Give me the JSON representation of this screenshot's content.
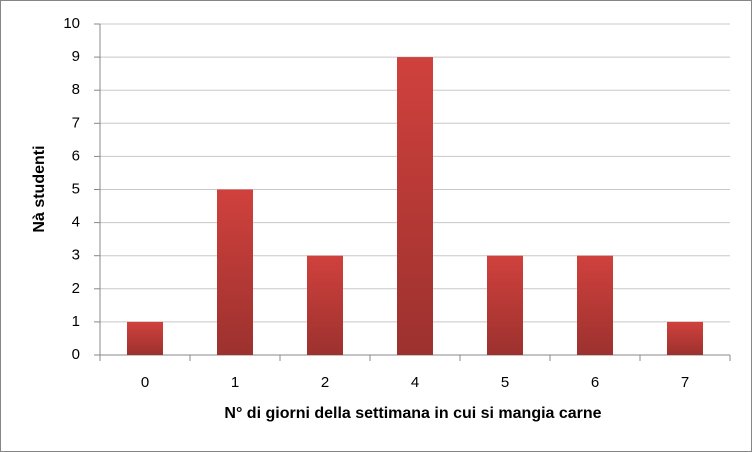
{
  "chart_data": {
    "type": "bar",
    "x_label": "N° di giorni della settimana in cui si mangia carne",
    "y_label": "Nà studenti",
    "categories": [
      "0",
      "1",
      "2",
      "4",
      "5",
      "6",
      "7"
    ],
    "values": [
      1,
      5,
      3,
      9,
      3,
      3,
      1
    ],
    "color": "#d0413d",
    "ylim": [
      0,
      10
    ],
    "yticks": [
      0,
      1,
      2,
      3,
      4,
      5,
      6,
      7,
      8,
      9,
      10
    ],
    "grid": true
  }
}
